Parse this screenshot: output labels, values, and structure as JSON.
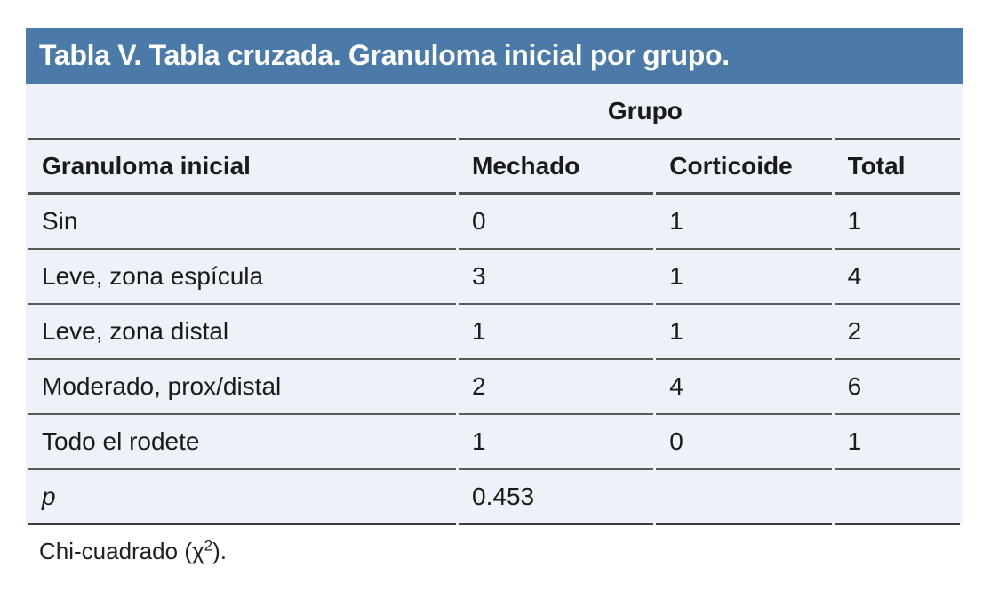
{
  "title": "Tabla V. Tabla cruzada. Granuloma inicial por grupo.",
  "colors": {
    "title_bar_bg": "#4b7aa9",
    "title_text": "#ffffff",
    "table_bg": "#edf1f8",
    "rule_heavy": "#4f4f4f",
    "rule_light": "#595959",
    "rule_bottom": "#3d3d3d",
    "body_text": "#1a1a1a"
  },
  "table": {
    "group_header": "Grupo",
    "columns": [
      "Granuloma inicial",
      "Mechado",
      "Corticoide",
      "Total"
    ],
    "rows": [
      {
        "label": "Sin",
        "values": [
          "0",
          "1",
          "1"
        ]
      },
      {
        "label": "Leve, zona espícula",
        "values": [
          "3",
          "1",
          "4"
        ]
      },
      {
        "label": "Leve, zona distal",
        "values": [
          "1",
          "1",
          "2"
        ]
      },
      {
        "label": "Moderado, prox/distal",
        "values": [
          "2",
          "4",
          "6"
        ]
      },
      {
        "label": "Todo el rodete",
        "values": [
          "1",
          "0",
          "1"
        ]
      },
      {
        "label": "p",
        "values": [
          "0.453",
          "",
          ""
        ]
      }
    ]
  },
  "footnote": {
    "prefix": "Chi-cuadrado (χ",
    "sup": "2",
    "suffix": ")."
  }
}
